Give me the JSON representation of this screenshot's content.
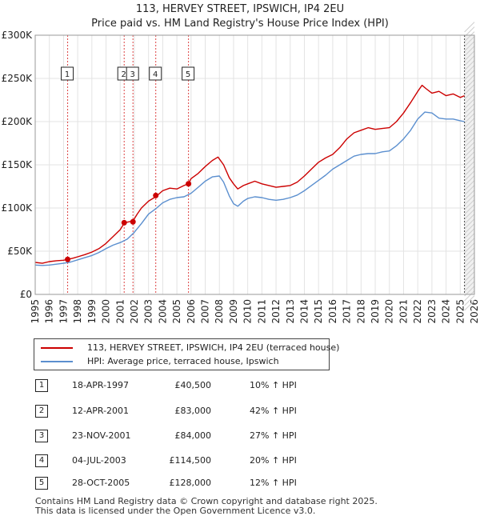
{
  "header": {
    "title": "113, HERVEY STREET, IPSWICH, IP4 2EU",
    "subtitle": "Price paid vs. HM Land Registry's House Price Index (HPI)"
  },
  "colors": {
    "property": "#cc0000",
    "hpi": "#5b8fcf",
    "marker_line": "#dd4444",
    "shade": "#e4ebf6"
  },
  "legend": {
    "property_label": "113, HERVEY STREET, IPSWICH, IP4 2EU (terraced house)",
    "hpi_label": "HPI: Average price, terraced house, Ipswich"
  },
  "sales": [
    {
      "num": "1",
      "date": "18-APR-1997",
      "price": "£40,500",
      "hpi": "10% ↑ HPI"
    },
    {
      "num": "2",
      "date": "12-APR-2001",
      "price": "£83,000",
      "hpi": "42% ↑ HPI"
    },
    {
      "num": "3",
      "date": "23-NOV-2001",
      "price": "£84,000",
      "hpi": "27% ↑ HPI"
    },
    {
      "num": "4",
      "date": "04-JUL-2003",
      "price": "£114,500",
      "hpi": "20% ↑ HPI"
    },
    {
      "num": "5",
      "date": "28-OCT-2005",
      "price": "£128,000",
      "hpi": "12% ↑ HPI"
    }
  ],
  "footer": {
    "line1": "Contains HM Land Registry data © Crown copyright and database right 2025.",
    "line2": "This data is licensed under the Open Government Licence v3.0."
  },
  "chart_data": {
    "type": "line",
    "xlim": [
      1995,
      2026
    ],
    "ylim": [
      0,
      300000
    ],
    "y_ticks": [
      0,
      50000,
      100000,
      150000,
      200000,
      250000,
      300000
    ],
    "y_tick_labels": [
      "£0",
      "£50K",
      "£100K",
      "£150K",
      "£200K",
      "£250K",
      "£300K"
    ],
    "x_ticks": [
      1995,
      1996,
      1997,
      1998,
      1999,
      2000,
      2001,
      2002,
      2003,
      2004,
      2005,
      2006,
      2007,
      2008,
      2009,
      2010,
      2011,
      2012,
      2013,
      2014,
      2015,
      2016,
      2017,
      2018,
      2019,
      2020,
      2021,
      2022,
      2023,
      2024,
      2025,
      2026
    ],
    "x_tick_labels": [
      "1995",
      "1996",
      "1997",
      "1998",
      "1999",
      "2000",
      "2001",
      "2002",
      "2003",
      "2004",
      "2005",
      "2006",
      "2007",
      "2008",
      "2009",
      "2010",
      "2011",
      "2012",
      "2013",
      "2014",
      "2015",
      "2016",
      "2017",
      "2018",
      "2019",
      "2020",
      "2021",
      "2022",
      "2023",
      "2024",
      "2025",
      "2026"
    ],
    "shade_from": 2025.3,
    "series": [
      {
        "name": "113, HERVEY STREET, IPSWICH, IP4 2EU (terraced house)",
        "x": [
          1995,
          1995.5,
          1996,
          1996.5,
          1997,
          1997.3,
          1997.7,
          1998,
          1998.5,
          1999,
          1999.5,
          2000,
          2000.5,
          2001,
          2001.3,
          2001.6,
          2001.9,
          2002.2,
          2002.5,
          2003,
          2003.5,
          2004,
          2004.5,
          2005,
          2005.5,
          2005.8,
          2006,
          2006.5,
          2007,
          2007.5,
          2007.9,
          2008.3,
          2008.7,
          2009,
          2009.3,
          2009.7,
          2010,
          2010.5,
          2011,
          2011.5,
          2012,
          2012.5,
          2013,
          2013.5,
          2014,
          2014.5,
          2015,
          2015.5,
          2016,
          2016.5,
          2017,
          2017.5,
          2018,
          2018.5,
          2019,
          2019.5,
          2020,
          2020.5,
          2021,
          2021.5,
          2022,
          2022.3,
          2022.6,
          2023,
          2023.5,
          2024,
          2024.5,
          2025,
          2025.3
        ],
        "y": [
          37000,
          36000,
          38000,
          39000,
          39500,
          40500,
          42000,
          43500,
          46000,
          49000,
          53000,
          59000,
          67000,
          75000,
          83000,
          84000,
          85000,
          93000,
          100000,
          108000,
          113000,
          120000,
          123000,
          122000,
          126000,
          128000,
          134000,
          140000,
          148000,
          155000,
          159000,
          150000,
          135000,
          128000,
          122000,
          126000,
          128000,
          131000,
          128000,
          126000,
          124000,
          125000,
          126000,
          130000,
          137000,
          145000,
          153000,
          158000,
          162000,
          170000,
          180000,
          187000,
          190000,
          193000,
          191000,
          192000,
          193000,
          200000,
          210000,
          222000,
          235000,
          242000,
          238000,
          233000,
          235000,
          230000,
          232000,
          228000,
          230000
        ]
      },
      {
        "name": "HPI: Average price, terraced house, Ipswich",
        "x": [
          1995,
          1995.5,
          1996,
          1996.5,
          1997,
          1997.5,
          1998,
          1998.5,
          1999,
          1999.5,
          2000,
          2000.5,
          2001,
          2001.5,
          2002,
          2002.5,
          2003,
          2003.5,
          2004,
          2004.5,
          2005,
          2005.5,
          2006,
          2006.5,
          2007,
          2007.5,
          2008,
          2008.3,
          2008.7,
          2009,
          2009.3,
          2009.7,
          2010,
          2010.5,
          2011,
          2011.5,
          2012,
          2012.5,
          2013,
          2013.5,
          2014,
          2014.5,
          2015,
          2015.5,
          2016,
          2016.5,
          2017,
          2017.5,
          2018,
          2018.5,
          2019,
          2019.5,
          2020,
          2020.5,
          2021,
          2021.5,
          2022,
          2022.5,
          2023,
          2023.5,
          2024,
          2024.5,
          2025,
          2025.3
        ],
        "y": [
          34000,
          33500,
          34000,
          35000,
          36000,
          37500,
          40000,
          42500,
          45000,
          48500,
          53000,
          57000,
          60000,
          64000,
          72000,
          82000,
          93000,
          99000,
          106000,
          110000,
          112000,
          113000,
          117000,
          124000,
          131000,
          136000,
          137000,
          130000,
          114000,
          105000,
          102000,
          108000,
          111000,
          113000,
          112000,
          110000,
          109000,
          110000,
          112000,
          115000,
          120000,
          126000,
          132000,
          138000,
          145000,
          150000,
          155000,
          160000,
          162000,
          163000,
          163000,
          165000,
          166000,
          172000,
          180000,
          190000,
          203000,
          211000,
          210000,
          204000,
          203000,
          203000,
          201000,
          200000
        ]
      }
    ],
    "sale_markers": [
      {
        "label": "1",
        "x": 1997.29,
        "y": 40500
      },
      {
        "label": "2",
        "x": 2001.28,
        "y": 83000
      },
      {
        "label": "3",
        "x": 2001.9,
        "y": 84000
      },
      {
        "label": "4",
        "x": 2003.51,
        "y": 114500
      },
      {
        "label": "5",
        "x": 2005.82,
        "y": 128000
      }
    ]
  }
}
